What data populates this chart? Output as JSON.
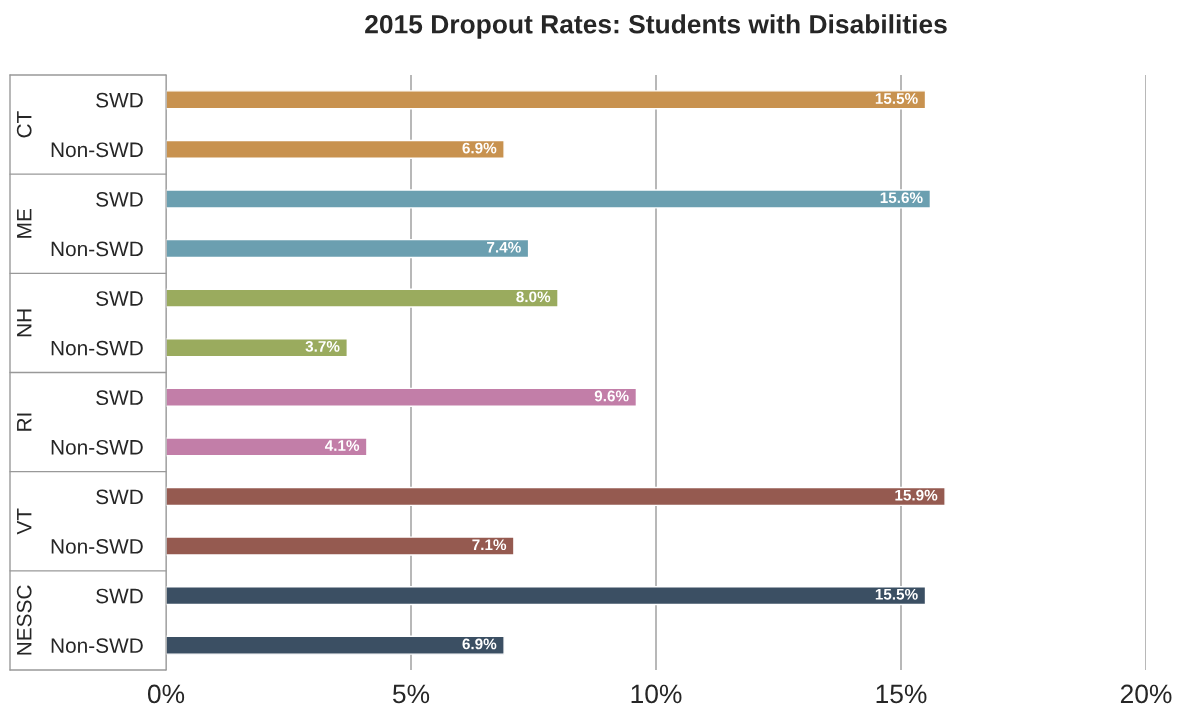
{
  "chart_data": {
    "type": "bar",
    "orientation": "horizontal",
    "title": "2015 Dropout Rates: Students with Disabilities",
    "categories": [
      "SWD",
      "Non-SWD",
      "SWD",
      "Non-SWD",
      "SWD",
      "Non-SWD",
      "SWD",
      "Non-SWD",
      "SWD",
      "Non-SWD",
      "SWD",
      "Non-SWD"
    ],
    "y2_categories": [
      "CT",
      null,
      "ME",
      null,
      "NH",
      null,
      "RI",
      null,
      "VT",
      null,
      "NESSC",
      null
    ],
    "values": [
      15.5,
      6.9,
      15.6,
      7.4,
      8.0,
      3.7,
      9.6,
      4.1,
      15.9,
      7.1,
      15.5,
      6.9
    ],
    "value_labels": [
      "15.5%",
      "6.9%",
      "15.6%",
      "7.4%",
      "8.0%",
      "3.7%",
      "9.6%",
      "4.1%",
      "15.9%",
      "7.1%",
      "15.5%",
      "6.9%"
    ],
    "colors": [
      "#c8924f",
      "#c8924f",
      "#6b9fb0",
      "#6b9fb0",
      "#9aab5e",
      "#9aab5e",
      "#c27ea8",
      "#c27ea8",
      "#955a50",
      "#955a50",
      "#3b4f63",
      "#3b4f63"
    ],
    "xlim": [
      0,
      20
    ],
    "xticks": [
      {
        "value": 0,
        "label": "0%"
      },
      {
        "value": 5,
        "label": "5%"
      },
      {
        "value": 10,
        "label": "10%"
      },
      {
        "value": 15,
        "label": "15%"
      },
      {
        "value": 20,
        "label": "20%"
      }
    ],
    "grid": "x",
    "legend": false
  }
}
